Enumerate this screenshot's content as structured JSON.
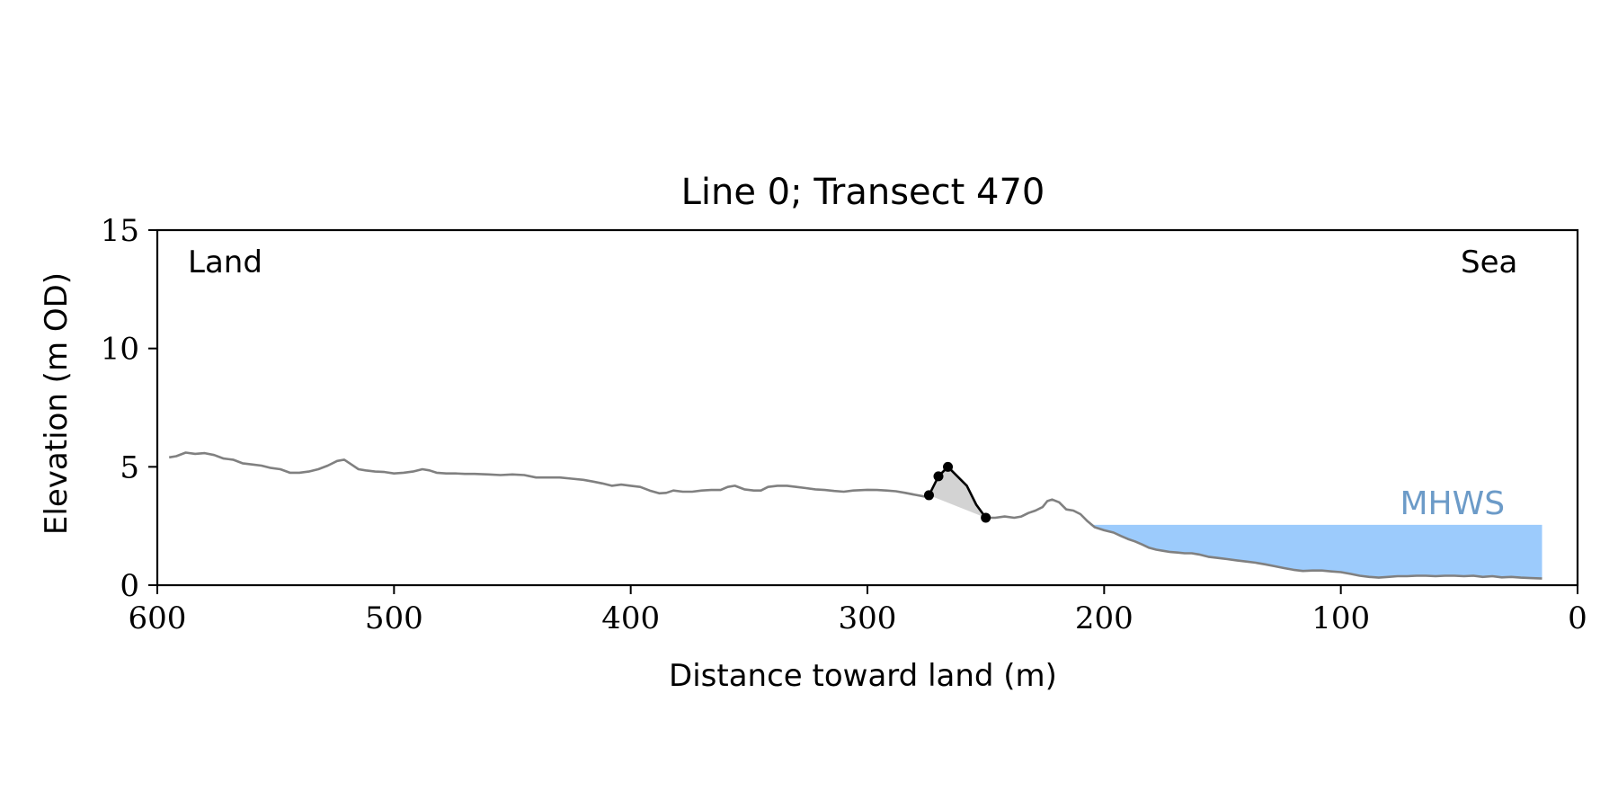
{
  "chart_data": {
    "type": "line",
    "title": "Line 0; Transect 470",
    "xlabel": "Distance toward land (m)",
    "ylabel": "Elevation (m OD)",
    "xlim": [
      600,
      0
    ],
    "ylim": [
      0,
      15
    ],
    "xticks": [
      600,
      500,
      400,
      300,
      200,
      100,
      0
    ],
    "yticks": [
      0,
      5,
      10,
      15
    ],
    "grid": false,
    "annotations": {
      "land": "Land",
      "sea": "Sea",
      "mhws": "MHWS"
    },
    "colors": {
      "profile": "#808080",
      "dune": "#000000",
      "dune_fill": "#d3d3d3",
      "sea_fill": "#9ccbfc",
      "mhws_text": "#6c9bc8"
    },
    "mhws": {
      "elevation": 2.55,
      "x_start": 205,
      "x_end": 15
    },
    "series": [
      {
        "x": [
          595,
          592,
          588,
          584,
          580,
          576,
          572,
          568,
          564,
          560,
          556,
          552,
          548,
          544,
          540,
          536,
          532,
          528,
          524,
          521,
          518,
          515,
          512,
          508,
          504,
          500,
          496,
          492,
          488,
          485,
          482,
          478,
          474,
          470,
          466,
          460,
          455,
          450,
          445,
          440,
          435,
          430,
          425,
          420,
          416,
          412,
          408,
          404,
          400,
          396,
          392,
          388,
          385,
          382,
          378,
          374,
          370,
          366,
          362,
          359,
          356,
          352,
          348,
          345,
          342,
          338,
          334,
          330,
          326,
          322,
          318,
          314,
          310,
          306,
          300,
          296,
          292,
          288,
          284,
          280,
          276,
          274
        ],
        "y": [
          5.4,
          5.45,
          5.6,
          5.55,
          5.58,
          5.5,
          5.35,
          5.3,
          5.15,
          5.1,
          5.05,
          4.95,
          4.9,
          4.75,
          4.75,
          4.8,
          4.9,
          5.05,
          5.25,
          5.3,
          5.1,
          4.9,
          4.85,
          4.8,
          4.78,
          4.72,
          4.75,
          4.8,
          4.9,
          4.85,
          4.75,
          4.72,
          4.72,
          4.7,
          4.7,
          4.68,
          4.65,
          4.68,
          4.65,
          4.55,
          4.55,
          4.55,
          4.5,
          4.45,
          4.38,
          4.3,
          4.2,
          4.25,
          4.2,
          4.15,
          4.0,
          3.88,
          3.9,
          4.0,
          3.95,
          3.95,
          4.0,
          4.02,
          4.02,
          4.15,
          4.2,
          4.05,
          4.0,
          4.0,
          4.15,
          4.2,
          4.2,
          4.15,
          4.1,
          4.05,
          4.02,
          3.98,
          3.95,
          4.0,
          4.03,
          4.02,
          4.0,
          3.97,
          3.9,
          3.82,
          3.75,
          3.8
        ]
      },
      {
        "x": [
          250,
          246,
          242,
          238,
          235,
          232,
          229,
          226,
          224,
          222,
          219,
          216,
          213,
          210,
          207,
          204,
          200,
          196,
          193,
          190,
          187,
          184,
          181,
          178,
          175,
          172,
          169,
          166,
          163,
          160,
          156,
          152,
          148,
          144,
          140,
          136,
          132,
          128,
          124,
          120,
          116,
          112,
          108,
          104,
          100,
          96,
          92,
          88,
          84,
          80,
          76,
          72,
          68,
          64,
          60,
          56,
          52,
          48,
          44,
          40,
          36,
          32,
          28,
          24,
          20,
          15
        ],
        "y": [
          2.85,
          2.85,
          2.9,
          2.85,
          2.9,
          3.05,
          3.15,
          3.3,
          3.55,
          3.62,
          3.5,
          3.2,
          3.15,
          3.0,
          2.7,
          2.45,
          2.32,
          2.22,
          2.08,
          1.95,
          1.85,
          1.72,
          1.58,
          1.5,
          1.45,
          1.4,
          1.38,
          1.35,
          1.35,
          1.3,
          1.2,
          1.15,
          1.1,
          1.05,
          1.0,
          0.95,
          0.88,
          0.8,
          0.72,
          0.65,
          0.6,
          0.62,
          0.62,
          0.58,
          0.55,
          0.48,
          0.4,
          0.35,
          0.32,
          0.35,
          0.38,
          0.38,
          0.4,
          0.4,
          0.38,
          0.4,
          0.4,
          0.38,
          0.4,
          0.35,
          0.38,
          0.33,
          0.35,
          0.32,
          0.3,
          0.28
        ]
      },
      {
        "x": [
          274,
          270,
          266,
          262,
          258,
          254,
          250
        ],
        "y": [
          3.8,
          4.6,
          5.0,
          4.6,
          4.2,
          3.4,
          2.85
        ]
      }
    ],
    "dune_points": [
      {
        "x": 274,
        "y": 3.8
      },
      {
        "x": 270,
        "y": 4.6
      },
      {
        "x": 266,
        "y": 5.0
      },
      {
        "x": 250,
        "y": 2.85
      }
    ]
  }
}
